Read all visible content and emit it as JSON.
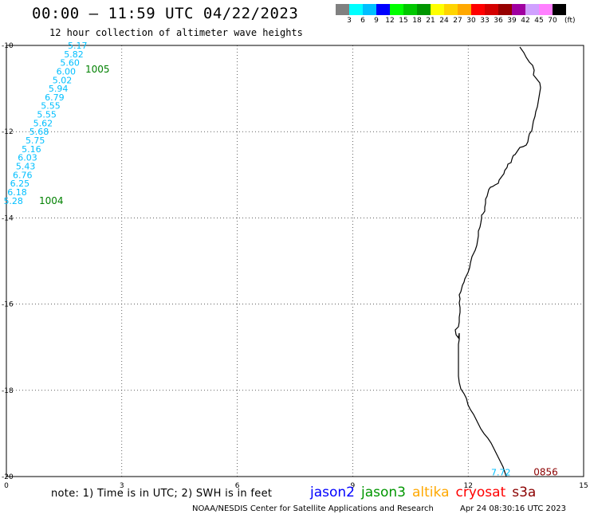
{
  "header": {
    "title": "00:00 – 11:59 UTC 04/22/2023",
    "subtitle": "12 hour collection of altimeter wave heights"
  },
  "colorbar": {
    "colors": [
      "#808080",
      "#00ffff",
      "#00bfff",
      "#0000ff",
      "#00ff00",
      "#00c800",
      "#009600",
      "#ffff00",
      "#ffd400",
      "#ffa800",
      "#ff0000",
      "#d40000",
      "#960000",
      "#a000a0",
      "#d0a0ff",
      "#ff80ff",
      "#000000"
    ],
    "labels": [
      "3",
      "6",
      "9",
      "12",
      "15",
      "18",
      "21",
      "24",
      "27",
      "30",
      "33",
      "36",
      "39",
      "42",
      "45",
      "70"
    ],
    "unit": "(ft)"
  },
  "map": {
    "x_range": [
      0,
      15
    ],
    "y_range": [
      -20,
      -10
    ],
    "x_ticks": [
      "0",
      "3",
      "6",
      "9",
      "12",
      "15"
    ],
    "y_ticks": [
      "-10",
      "-12",
      "-14",
      "-16",
      "-18",
      "-20"
    ],
    "coastline_color": "#000000",
    "grid": "dotted"
  },
  "chart_data": {
    "type": "scatter",
    "x_axis": "longitude",
    "y_axis": "latitude",
    "xlim": [
      0,
      15
    ],
    "ylim": [
      -20,
      -10
    ],
    "tracks": [
      {
        "color": "#00bfff",
        "points": [
          {
            "x": 1.85,
            "y": -10.0,
            "value": "5.17"
          },
          {
            "x": 1.75,
            "y": -10.2,
            "value": "5.82"
          },
          {
            "x": 1.65,
            "y": -10.4,
            "value": "5.60"
          },
          {
            "x": 1.55,
            "y": -10.6,
            "value": "6.00"
          },
          {
            "x": 1.45,
            "y": -10.8,
            "value": "5.02"
          },
          {
            "x": 1.35,
            "y": -11.0,
            "value": "5.94"
          },
          {
            "x": 1.25,
            "y": -11.2,
            "value": "6.79"
          },
          {
            "x": 1.15,
            "y": -11.4,
            "value": "5.55"
          },
          {
            "x": 1.05,
            "y": -11.6,
            "value": "5.55"
          },
          {
            "x": 0.95,
            "y": -11.8,
            "value": "5.62"
          },
          {
            "x": 0.85,
            "y": -12.0,
            "value": "5.68"
          },
          {
            "x": 0.75,
            "y": -12.2,
            "value": "5.75"
          },
          {
            "x": 0.65,
            "y": -12.4,
            "value": "5.16"
          },
          {
            "x": 0.55,
            "y": -12.6,
            "value": "6.03"
          },
          {
            "x": 0.5,
            "y": -12.8,
            "value": "5.43"
          },
          {
            "x": 0.42,
            "y": -13.0,
            "value": "6.76"
          },
          {
            "x": 0.35,
            "y": -13.2,
            "value": "6.25"
          },
          {
            "x": 0.28,
            "y": -13.4,
            "value": "6.18"
          },
          {
            "x": 0.18,
            "y": -13.6,
            "value": "5.28"
          }
        ],
        "time_labels": [
          {
            "text": "1005",
            "x": 2.05,
            "y": -10.55,
            "color": "#008000"
          },
          {
            "text": "1004",
            "x": 0.85,
            "y": -13.6,
            "color": "#008000"
          }
        ]
      },
      {
        "color": "#00bfff",
        "points": [
          {
            "x": 12.85,
            "y": -19.9,
            "value": "7.72"
          }
        ],
        "time_labels": [
          {
            "text": "0856",
            "x": 13.7,
            "y": -19.9,
            "color": "#8b0000"
          }
        ]
      }
    ]
  },
  "footer": {
    "note": "note: 1) Time is in UTC; 2) SWH is in feet",
    "satellites": [
      {
        "name": "jason2",
        "color": "#0000ff"
      },
      {
        "name": "jason3",
        "color": "#009600"
      },
      {
        "name": "altika",
        "color": "#ffa800"
      },
      {
        "name": "cryosat",
        "color": "#ff0000"
      },
      {
        "name": "s3a",
        "color": "#8b0000"
      }
    ],
    "credit": "NOAA/NESDIS Center for Satellite Applications and Research",
    "generated": "Apr 24 08:30:16 UTC 2023"
  }
}
